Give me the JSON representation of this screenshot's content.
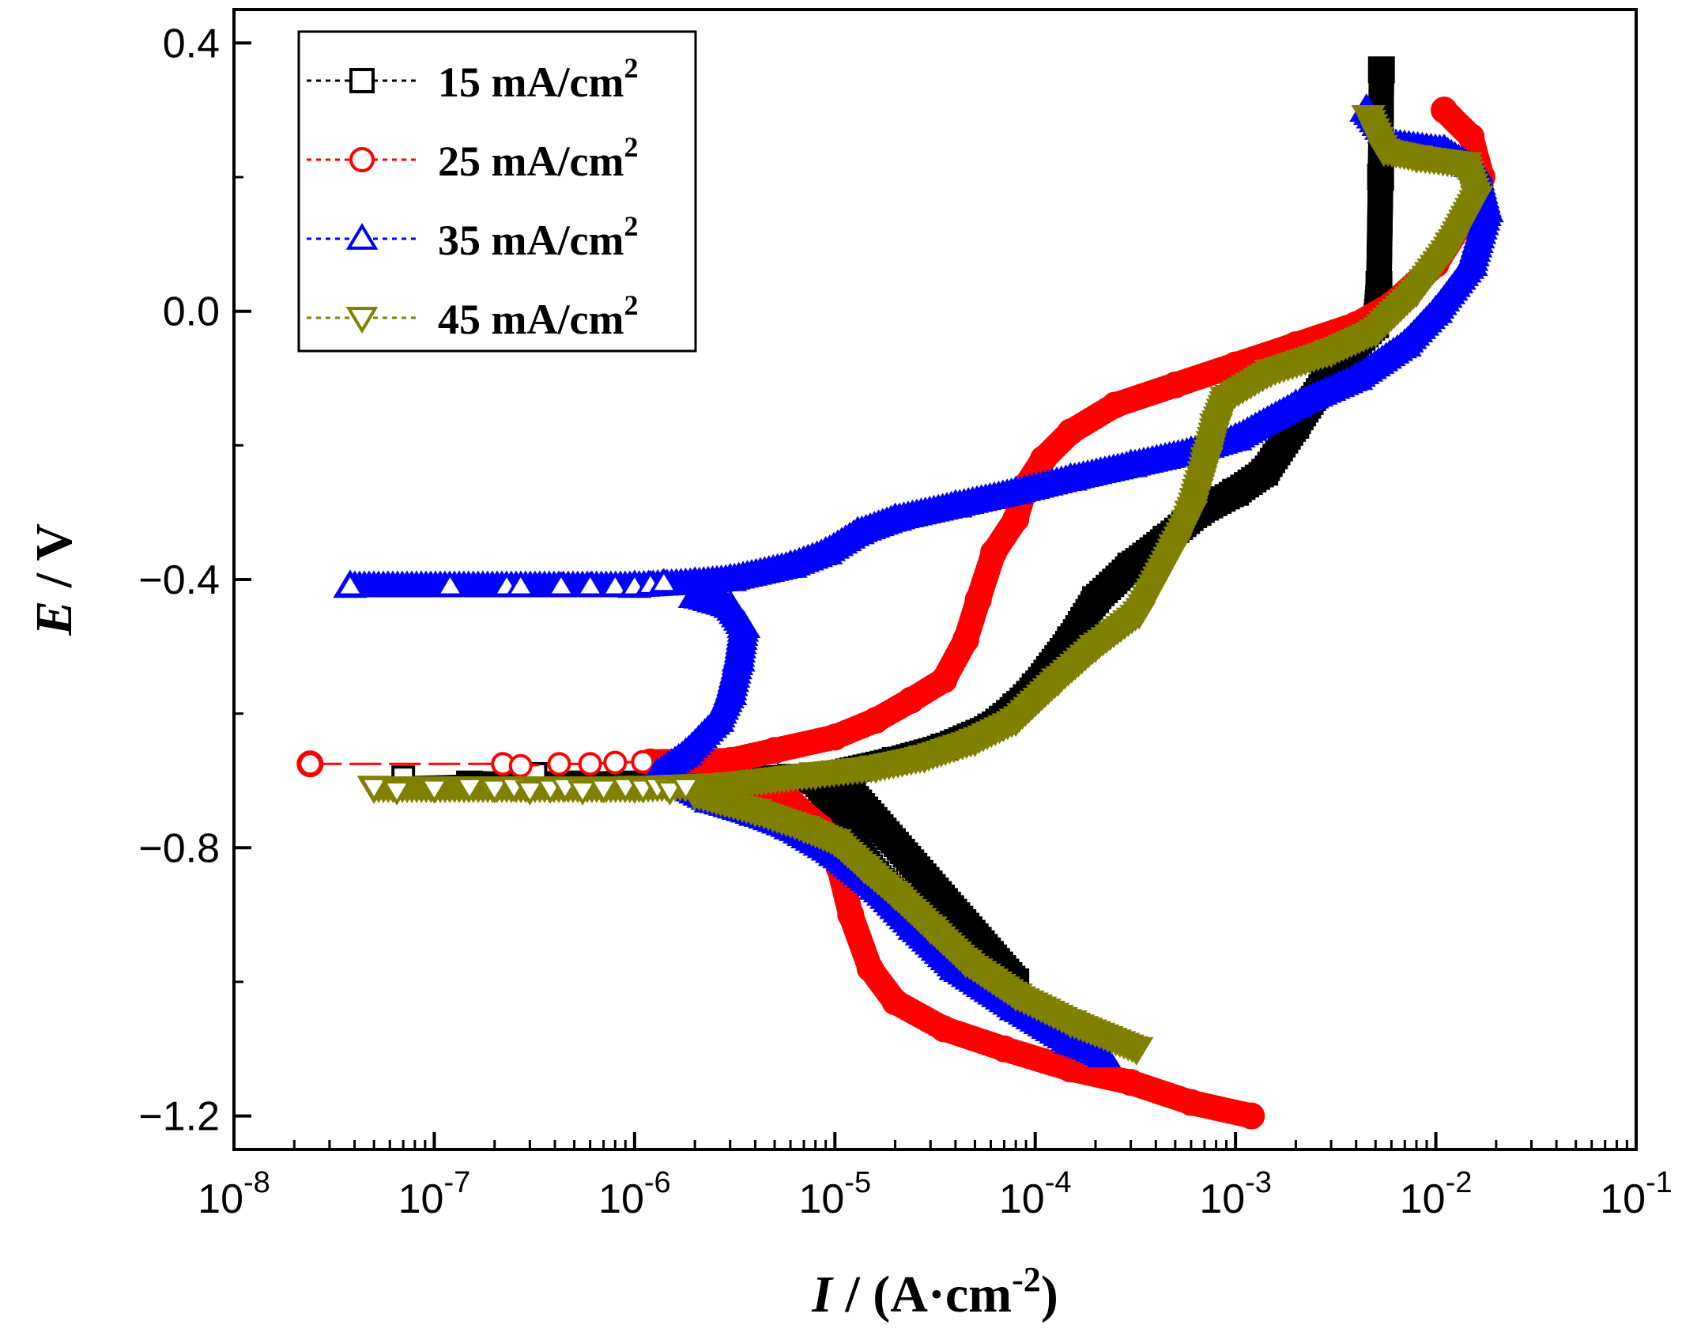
{
  "chart_data": {
    "type": "line",
    "xscale": "log",
    "xlim": [
      1e-08,
      0.1
    ],
    "ylim": [
      -1.25,
      0.45
    ],
    "xlabel": {
      "italic": "I",
      "rest": " / (A·cm",
      "sup": "-2",
      "close": ")"
    },
    "ylabel": {
      "italic": "E",
      "rest": " / V"
    },
    "x_ticks": [
      {
        "base": "10",
        "exp": "-8",
        "value": 1e-08
      },
      {
        "base": "10",
        "exp": "-7",
        "value": 1e-07
      },
      {
        "base": "10",
        "exp": "-6",
        "value": 1e-06
      },
      {
        "base": "10",
        "exp": "-5",
        "value": 1e-05
      },
      {
        "base": "10",
        "exp": "-4",
        "value": 0.0001
      },
      {
        "base": "10",
        "exp": "-3",
        "value": 0.001
      },
      {
        "base": "10",
        "exp": "-2",
        "value": 0.01
      },
      {
        "base": "10",
        "exp": "-1",
        "value": 0.1
      }
    ],
    "y_ticks": [
      {
        "label": "0.4",
        "value": 0.4
      },
      {
        "label": "0.0",
        "value": 0.0
      },
      {
        "label": "−0.4",
        "value": -0.4
      },
      {
        "label": "−0.8",
        "value": -0.8
      },
      {
        "label": "−1.2",
        "value": -1.2
      }
    ],
    "y_minor_ticks": [
      0.2,
      -0.2,
      -0.6,
      -1.0
    ],
    "legend": {
      "position": "top-left"
    },
    "series": [
      {
        "name": "15 mA/cm",
        "unit_sup": "2",
        "color": "#000000",
        "marker": "square",
        "open_markers": [
          [
            7e-08,
            -0.695
          ],
          [
            3.2e-07,
            -0.69
          ]
        ],
        "points": [
          [
            1.5e-07,
            -0.705
          ],
          [
            5e-07,
            -0.705
          ],
          [
            1e-06,
            -0.705
          ],
          [
            3e-06,
            -0.7
          ],
          [
            6e-06,
            -0.695
          ],
          [
            8e-06,
            -0.7
          ],
          [
            1.05e-05,
            -0.75
          ],
          [
            1.2e-05,
            -0.79
          ],
          [
            1.6e-05,
            -0.84
          ],
          [
            2.4e-05,
            -0.89
          ],
          [
            3.5e-05,
            -0.94
          ],
          [
            5e-05,
            -0.98
          ],
          [
            8e-05,
            -1.0
          ],
          [
            1e-05,
            -0.69
          ],
          [
            2e-05,
            -0.67
          ],
          [
            3.5e-05,
            -0.65
          ],
          [
            6e-05,
            -0.62
          ],
          [
            8e-05,
            -0.59
          ],
          [
            0.0001,
            -0.56
          ],
          [
            0.00015,
            -0.49
          ],
          [
            0.0002,
            -0.43
          ],
          [
            0.0003,
            -0.38
          ],
          [
            0.00045,
            -0.34
          ],
          [
            0.00065,
            -0.3
          ],
          [
            0.001,
            -0.27
          ],
          [
            0.0014,
            -0.24
          ],
          [
            0.002,
            -0.17
          ],
          [
            0.003,
            -0.09
          ],
          [
            0.005,
            -0.02
          ],
          [
            0.0052,
            0.04
          ],
          [
            0.0053,
            0.2
          ],
          [
            0.00535,
            0.36
          ]
        ]
      },
      {
        "name": "25 mA/cm",
        "unit_sup": "2",
        "color": "#ff0000",
        "marker": "circle",
        "open_markers": [
          [
            2.4e-08,
            -0.675
          ],
          [
            2.2e-07,
            -0.675
          ],
          [
            2.7e-07,
            -0.678
          ],
          [
            4.2e-07,
            -0.675
          ],
          [
            6e-07,
            -0.675
          ],
          [
            8e-07,
            -0.673
          ],
          [
            1.1e-06,
            -0.672
          ]
        ],
        "points": [
          [
            2.4e-08,
            -0.675
          ],
          [
            1.2e-06,
            -0.672
          ],
          [
            3e-06,
            -0.67
          ],
          [
            5e-06,
            -0.655
          ],
          [
            1e-05,
            -0.635
          ],
          [
            1.6e-05,
            -0.61
          ],
          [
            2.4e-05,
            -0.58
          ],
          [
            3.5e-05,
            -0.55
          ],
          [
            4.5e-05,
            -0.49
          ],
          [
            5.2e-05,
            -0.43
          ],
          [
            6.2e-05,
            -0.36
          ],
          [
            8e-05,
            -0.31
          ],
          [
            9e-05,
            -0.26
          ],
          [
            0.00011,
            -0.22
          ],
          [
            0.00015,
            -0.18
          ],
          [
            0.00025,
            -0.14
          ],
          [
            0.0005,
            -0.11
          ],
          [
            0.001,
            -0.08
          ],
          [
            0.002,
            -0.05
          ],
          [
            0.004,
            -0.02
          ],
          [
            0.006,
            0.01
          ],
          [
            0.01,
            0.07
          ],
          [
            0.014,
            0.14
          ],
          [
            0.017,
            0.2
          ],
          [
            0.015,
            0.26
          ],
          [
            0.011,
            0.3
          ],
          [
            3e-06,
            -0.7
          ],
          [
            6e-06,
            -0.73
          ],
          [
            8.5e-06,
            -0.77
          ],
          [
            1.05e-05,
            -0.83
          ],
          [
            1.2e-05,
            -0.9
          ],
          [
            1.5e-05,
            -0.98
          ],
          [
            2e-05,
            -1.03
          ],
          [
            3.5e-05,
            -1.07
          ],
          [
            7e-05,
            -1.1
          ],
          [
            0.00015,
            -1.13
          ],
          [
            0.0003,
            -1.15
          ],
          [
            0.0006,
            -1.18
          ],
          [
            0.0012,
            -1.2
          ]
        ]
      },
      {
        "name": "35 mA/cm",
        "unit_sup": "2",
        "color": "#0000ff",
        "marker": "up-triangle",
        "open_markers": [
          [
            3.8e-08,
            -0.41
          ],
          [
            1.2e-07,
            -0.41
          ],
          [
            2.3e-07,
            -0.41
          ],
          [
            2.7e-07,
            -0.41
          ],
          [
            4.3e-07,
            -0.41
          ],
          [
            6e-07,
            -0.41
          ],
          [
            8e-07,
            -0.41
          ],
          [
            1e-06,
            -0.41
          ],
          [
            1.2e-06,
            -0.408
          ],
          [
            1.4e-06,
            -0.405
          ]
        ],
        "points": [
          [
            3.8e-08,
            -0.41
          ],
          [
            1e-06,
            -0.41
          ],
          [
            2e-06,
            -0.405
          ],
          [
            3e-06,
            -0.4
          ],
          [
            6e-06,
            -0.38
          ],
          [
            9e-06,
            -0.36
          ],
          [
            1.3e-05,
            -0.33
          ],
          [
            2e-05,
            -0.31
          ],
          [
            4e-05,
            -0.29
          ],
          [
            8e-05,
            -0.27
          ],
          [
            0.00015,
            -0.25
          ],
          [
            0.0003,
            -0.23
          ],
          [
            0.0006,
            -0.21
          ],
          [
            0.001,
            -0.19
          ],
          [
            0.002,
            -0.14
          ],
          [
            0.004,
            -0.1
          ],
          [
            0.007,
            -0.05
          ],
          [
            0.01,
            0.0
          ],
          [
            0.015,
            0.07
          ],
          [
            0.018,
            0.15
          ],
          [
            0.016,
            0.21
          ],
          [
            0.011,
            0.24
          ],
          [
            0.006,
            0.25
          ],
          [
            0.0045,
            0.3
          ],
          [
            2e-06,
            -0.425
          ],
          [
            3e-06,
            -0.44
          ],
          [
            3.5e-06,
            -0.47
          ],
          [
            3.3e-06,
            -0.52
          ],
          [
            3e-06,
            -0.57
          ],
          [
            2.6e-06,
            -0.61
          ],
          [
            1.8e-06,
            -0.66
          ],
          [
            1.3e-06,
            -0.69
          ],
          [
            2.4e-06,
            -0.73
          ],
          [
            4e-06,
            -0.75
          ],
          [
            6e-06,
            -0.77
          ],
          [
            1e-05,
            -0.81
          ],
          [
            1.6e-05,
            -0.86
          ],
          [
            2.5e-05,
            -0.92
          ],
          [
            4e-05,
            -0.98
          ],
          [
            8e-05,
            -1.04
          ],
          [
            0.00015,
            -1.09
          ],
          [
            0.00022,
            -1.11
          ]
        ]
      },
      {
        "name": "45 mA/cm",
        "unit_sup": "2",
        "color": "#808000",
        "marker": "down-triangle",
        "open_markers": [
          [
            5e-08,
            -0.71
          ],
          [
            6.5e-08,
            -0.715
          ],
          [
            1e-07,
            -0.712
          ],
          [
            1.5e-07,
            -0.71
          ],
          [
            2e-07,
            -0.712
          ],
          [
            2.5e-07,
            -0.71
          ],
          [
            3e-07,
            -0.715
          ],
          [
            3.8e-07,
            -0.712
          ],
          [
            4.5e-07,
            -0.71
          ],
          [
            5.5e-07,
            -0.715
          ],
          [
            7e-07,
            -0.712
          ],
          [
            9e-07,
            -0.71
          ],
          [
            1.1e-06,
            -0.712
          ],
          [
            1.3e-06,
            -0.71
          ],
          [
            1.5e-06,
            -0.715
          ],
          [
            1.8e-06,
            -0.71
          ]
        ],
        "points": [
          [
            5e-08,
            -0.71
          ],
          [
            1e-06,
            -0.71
          ],
          [
            3e-06,
            -0.705
          ],
          [
            8e-06,
            -0.69
          ],
          [
            1.6e-05,
            -0.68
          ],
          [
            2.8e-05,
            -0.665
          ],
          [
            5e-05,
            -0.64
          ],
          [
            8e-05,
            -0.61
          ],
          [
            0.00013,
            -0.55
          ],
          [
            0.0002,
            -0.5
          ],
          [
            0.00033,
            -0.45
          ],
          [
            0.0005,
            -0.35
          ],
          [
            0.0006,
            -0.3
          ],
          [
            0.00072,
            -0.22
          ],
          [
            0.0008,
            -0.17
          ],
          [
            0.0009,
            -0.13
          ],
          [
            0.0015,
            -0.09
          ],
          [
            0.003,
            -0.06
          ],
          [
            0.005,
            -0.03
          ],
          [
            0.008,
            0.03
          ],
          [
            0.012,
            0.1
          ],
          [
            0.016,
            0.17
          ],
          [
            0.014,
            0.22
          ],
          [
            0.008,
            0.23
          ],
          [
            0.0055,
            0.24
          ],
          [
            0.0046,
            0.29
          ],
          [
            2e-06,
            -0.72
          ],
          [
            4e-06,
            -0.745
          ],
          [
            7e-06,
            -0.77
          ],
          [
            1e-05,
            -0.79
          ],
          [
            1.4e-05,
            -0.83
          ],
          [
            2e-05,
            -0.87
          ],
          [
            3e-05,
            -0.92
          ],
          [
            4.5e-05,
            -0.97
          ],
          [
            8e-05,
            -1.02
          ],
          [
            0.00015,
            -1.06
          ],
          [
            0.00032,
            -1.1
          ]
        ]
      }
    ]
  }
}
